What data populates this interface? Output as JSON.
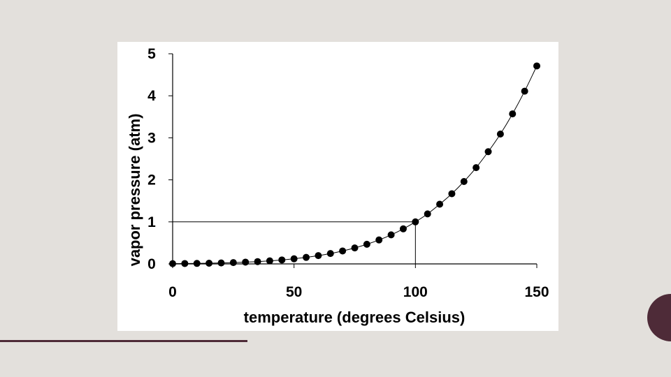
{
  "colors": {
    "background": "#e3e0dc",
    "chart_background": "#ffffff",
    "accent": "#4e2b38",
    "ink": "#000000"
  },
  "chart_data": {
    "type": "scatter",
    "xlabel": "temperature (degrees Celsius)",
    "ylabel": "vapor pressure (atm)",
    "xlim": [
      0,
      150
    ],
    "ylim": [
      0,
      5
    ],
    "xticks": [
      "0",
      "50",
      "100",
      "150"
    ],
    "yticks": [
      "0",
      "1",
      "2",
      "3",
      "4",
      "5"
    ],
    "grid": false,
    "legend": "none",
    "trend_line": true,
    "reference_lines": [
      {
        "x": 100,
        "y": 1
      }
    ],
    "x": [
      0,
      5,
      10,
      15,
      20,
      25,
      30,
      35,
      40,
      45,
      50,
      55,
      60,
      65,
      70,
      75,
      80,
      85,
      90,
      95,
      100,
      105,
      110,
      115,
      120,
      125,
      130,
      135,
      140,
      145,
      150
    ],
    "y": [
      0.006,
      0.009,
      0.012,
      0.017,
      0.023,
      0.031,
      0.042,
      0.055,
      0.073,
      0.094,
      0.122,
      0.155,
      0.197,
      0.247,
      0.308,
      0.38,
      0.467,
      0.57,
      0.691,
      0.834,
      1.0,
      1.19,
      1.42,
      1.67,
      1.96,
      2.29,
      2.67,
      3.09,
      3.57,
      4.11,
      4.71
    ]
  }
}
